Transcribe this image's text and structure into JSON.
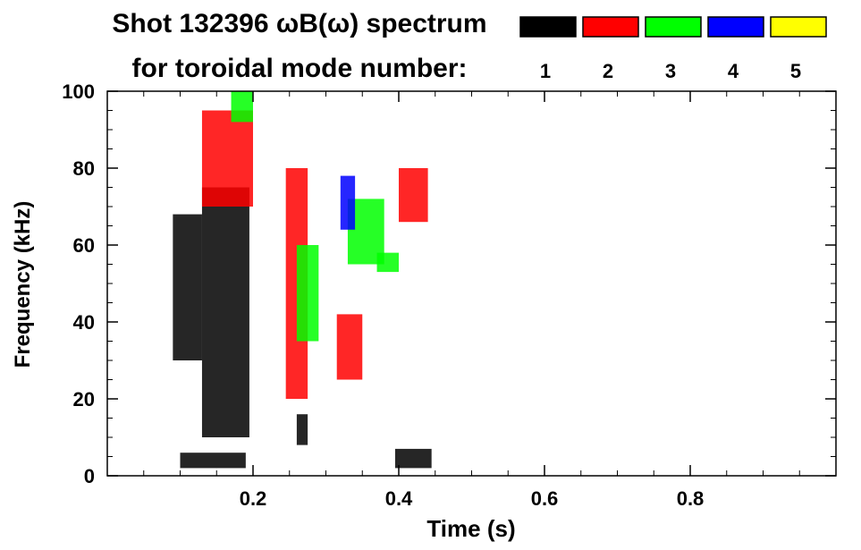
{
  "chart_data": {
    "type": "heatmap",
    "title_line1": "Shot 132396 ωB(ω) spectrum",
    "title_line2": "for toroidal mode number:",
    "xlabel": "Time (s)",
    "ylabel": "Frequency (kHz)",
    "xlim": [
      0.0,
      1.0
    ],
    "ylim": [
      0,
      100
    ],
    "x_ticks": [
      0.2,
      0.4,
      0.6,
      0.8
    ],
    "x_tick_labels": [
      "0.2",
      "0.4",
      "0.6",
      "0.8"
    ],
    "y_ticks": [
      0,
      20,
      40,
      60,
      80,
      100
    ],
    "y_tick_labels": [
      "0",
      "20",
      "40",
      "60",
      "80",
      "100"
    ],
    "grid": false,
    "legend_position": "top-right",
    "legend": [
      {
        "label": "1",
        "color": "#000000"
      },
      {
        "label": "2",
        "color": "#ff0000"
      },
      {
        "label": "3",
        "color": "#00ff00"
      },
      {
        "label": "4",
        "color": "#0000ff"
      },
      {
        "label": "5",
        "color": "#ffff00"
      }
    ],
    "series": [
      {
        "mode": 1,
        "color": "#000000",
        "regions": [
          {
            "t": [
              0.09,
              0.13
            ],
            "f": [
              30,
              68
            ]
          },
          {
            "t": [
              0.13,
              0.195
            ],
            "f": [
              10,
              75
            ]
          },
          {
            "t": [
              0.1,
              0.19
            ],
            "f": [
              2,
              6
            ]
          },
          {
            "t": [
              0.26,
              0.275
            ],
            "f": [
              8,
              16
            ]
          },
          {
            "t": [
              0.395,
              0.445
            ],
            "f": [
              2,
              7
            ]
          }
        ]
      },
      {
        "mode": 2,
        "color": "#ff0000",
        "regions": [
          {
            "t": [
              0.13,
              0.2
            ],
            "f": [
              70,
              95
            ]
          },
          {
            "t": [
              0.245,
              0.275
            ],
            "f": [
              20,
              80
            ]
          },
          {
            "t": [
              0.315,
              0.35
            ],
            "f": [
              25,
              42
            ]
          },
          {
            "t": [
              0.4,
              0.44
            ],
            "f": [
              66,
              80
            ]
          }
        ]
      },
      {
        "mode": 3,
        "color": "#00ff00",
        "regions": [
          {
            "t": [
              0.17,
              0.2
            ],
            "f": [
              92,
              100
            ]
          },
          {
            "t": [
              0.26,
              0.29
            ],
            "f": [
              35,
              60
            ]
          },
          {
            "t": [
              0.33,
              0.38
            ],
            "f": [
              55,
              72
            ]
          },
          {
            "t": [
              0.37,
              0.4
            ],
            "f": [
              53,
              58
            ]
          }
        ]
      },
      {
        "mode": 4,
        "color": "#0000ff",
        "regions": [
          {
            "t": [
              0.32,
              0.34
            ],
            "f": [
              64,
              78
            ]
          }
        ]
      },
      {
        "mode": 5,
        "color": "#ffff00",
        "regions": []
      }
    ]
  }
}
